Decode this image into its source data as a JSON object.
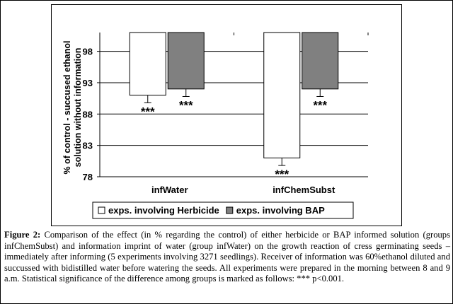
{
  "chart_data": {
    "type": "bar",
    "ylabel": "% of control - succused ethanol solution without information",
    "ylim": [
      78,
      101
    ],
    "yticks": [
      78,
      83,
      88,
      93,
      98
    ],
    "categories": [
      "infWater",
      "infChemSubst"
    ],
    "series": [
      {
        "name": "exps. involving Herbicide",
        "values": [
          91,
          81
        ],
        "errors": [
          1.2,
          1.2
        ],
        "color": "#ffffff"
      },
      {
        "name": "exps. involving BAP",
        "values": [
          92,
          92
        ],
        "errors": [
          1.2,
          1.2
        ],
        "color": "#808080"
      }
    ],
    "annotations": [
      "***",
      "***",
      "***",
      "***"
    ],
    "legend_position": "bottom",
    "grid": true
  },
  "caption": {
    "label": "Figure 2:",
    "text": "Comparison of the effect (in % regarding the control) of either herbicide or BAP informed solution (groups infChemSubst) and information imprint of water (group infWater) on the growth reaction of cress germinating seeds – immediately after informing (5 experiments involving 3271 seedlings). Receiver of information was 60%ethanol diluted and succussed with bidistilled water before watering the seeds. All experiments were prepared in the morning between 8 and 9 a.m. Statistical significance of the difference among groups is marked as follows: *** p<0.001."
  }
}
